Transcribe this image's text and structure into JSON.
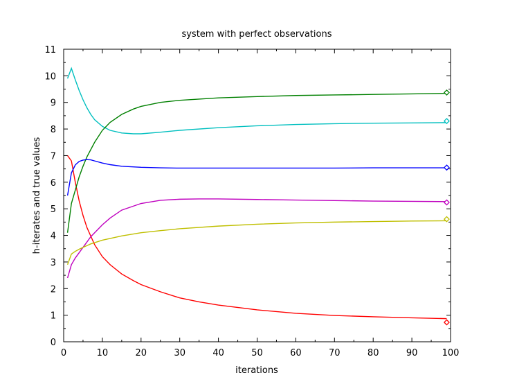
{
  "chart_data": {
    "type": "line",
    "title": "system with perfect observations",
    "xlabel": "iterations",
    "ylabel": "h-iterates and true values",
    "xlim": [
      0,
      100
    ],
    "ylim": [
      0,
      11
    ],
    "xticks": [
      "0",
      "10",
      "20",
      "30",
      "40",
      "50",
      "60",
      "70",
      "80",
      "90",
      "100"
    ],
    "yticks": [
      "0",
      "1",
      "2",
      "3",
      "4",
      "5",
      "6",
      "7",
      "8",
      "9",
      "10",
      "11"
    ],
    "grid": false,
    "legend": "none",
    "series": [
      {
        "color": "#ff0000",
        "x": [
          1,
          2,
          3,
          4,
          5,
          6,
          8,
          10,
          12,
          15,
          18,
          20,
          25,
          30,
          35,
          40,
          50,
          60,
          70,
          80,
          90,
          99
        ],
        "y": [
          7.0,
          6.8,
          6.0,
          5.3,
          4.75,
          4.3,
          3.65,
          3.2,
          2.9,
          2.55,
          2.3,
          2.15,
          1.88,
          1.65,
          1.5,
          1.38,
          1.2,
          1.07,
          0.99,
          0.94,
          0.9,
          0.87
        ],
        "true_value": 0.73
      },
      {
        "color": "#00bfbf",
        "x": [
          1,
          2,
          3,
          4,
          5,
          6,
          7,
          8,
          10,
          12,
          15,
          18,
          20,
          25,
          30,
          40,
          50,
          60,
          70,
          80,
          90,
          99
        ],
        "y": [
          9.9,
          10.28,
          9.85,
          9.45,
          9.1,
          8.8,
          8.55,
          8.35,
          8.1,
          7.95,
          7.85,
          7.82,
          7.82,
          7.88,
          7.95,
          8.05,
          8.12,
          8.17,
          8.2,
          8.22,
          8.23,
          8.24
        ],
        "true_value": 8.3
      },
      {
        "color": "#008000",
        "x": [
          1,
          2,
          3,
          4,
          5,
          6,
          8,
          10,
          12,
          15,
          18,
          20,
          25,
          30,
          40,
          50,
          60,
          70,
          80,
          90,
          99
        ],
        "y": [
          4.1,
          5.2,
          5.7,
          6.2,
          6.6,
          6.95,
          7.5,
          7.95,
          8.25,
          8.55,
          8.75,
          8.85,
          9.0,
          9.08,
          9.17,
          9.22,
          9.26,
          9.28,
          9.3,
          9.32,
          9.34
        ],
        "true_value": 9.37
      },
      {
        "color": "#0000ff",
        "x": [
          1,
          2,
          3,
          4,
          5,
          6,
          7,
          8,
          10,
          12,
          15,
          20,
          25,
          30,
          40,
          50,
          60,
          70,
          80,
          90,
          99
        ],
        "y": [
          5.5,
          6.35,
          6.65,
          6.78,
          6.83,
          6.85,
          6.84,
          6.8,
          6.72,
          6.66,
          6.6,
          6.56,
          6.54,
          6.53,
          6.53,
          6.53,
          6.53,
          6.53,
          6.54,
          6.54,
          6.54
        ],
        "true_value": 6.55
      },
      {
        "color": "#bf00bf",
        "x": [
          1,
          2,
          3,
          5,
          7,
          10,
          12,
          15,
          20,
          25,
          30,
          35,
          40,
          50,
          60,
          70,
          80,
          90,
          99
        ],
        "y": [
          2.4,
          2.9,
          3.15,
          3.55,
          3.95,
          4.4,
          4.65,
          4.95,
          5.2,
          5.32,
          5.36,
          5.37,
          5.37,
          5.35,
          5.33,
          5.31,
          5.29,
          5.28,
          5.27
        ],
        "true_value": 5.24
      },
      {
        "color": "#bfbf00",
        "x": [
          1,
          2,
          3,
          4,
          5,
          7,
          10,
          15,
          20,
          25,
          30,
          40,
          50,
          60,
          70,
          80,
          90,
          99
        ],
        "y": [
          2.9,
          3.3,
          3.4,
          3.48,
          3.55,
          3.68,
          3.82,
          3.98,
          4.1,
          4.18,
          4.25,
          4.35,
          4.42,
          4.47,
          4.5,
          4.52,
          4.54,
          4.55
        ],
        "true_value": 4.61
      }
    ]
  }
}
